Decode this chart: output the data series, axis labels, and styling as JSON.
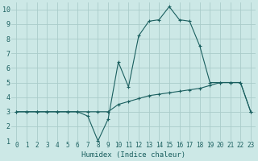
{
  "xlabel": "Humidex (Indice chaleur)",
  "ylabel": "",
  "bg_color": "#cce8e6",
  "grid_color": "#aaccca",
  "line_color": "#1a5f5f",
  "xlim": [
    -0.5,
    23.5
  ],
  "ylim": [
    1,
    10.5
  ],
  "yticks": [
    1,
    2,
    3,
    4,
    5,
    6,
    7,
    8,
    9,
    10
  ],
  "xticks": [
    0,
    1,
    2,
    3,
    4,
    5,
    6,
    7,
    8,
    9,
    10,
    11,
    12,
    13,
    14,
    15,
    16,
    17,
    18,
    19,
    20,
    21,
    22,
    23
  ],
  "curve1_x": [
    0,
    1,
    2,
    3,
    4,
    5,
    6,
    7,
    8,
    9,
    10,
    11,
    12,
    13,
    14,
    15,
    16,
    17,
    18,
    19,
    20,
    21,
    22,
    23
  ],
  "curve1_y": [
    3.0,
    3.0,
    3.0,
    3.0,
    3.0,
    3.0,
    3.0,
    2.7,
    1.0,
    2.5,
    6.4,
    4.7,
    8.2,
    9.2,
    9.3,
    10.2,
    9.3,
    9.2,
    7.5,
    5.0,
    5.0,
    5.0,
    5.0,
    3.0
  ],
  "curve2_x": [
    0,
    1,
    2,
    3,
    4,
    5,
    6,
    7,
    8,
    9,
    10,
    11,
    12,
    13,
    14,
    15,
    16,
    17,
    18,
    19,
    20,
    21,
    22,
    23
  ],
  "curve2_y": [
    3.0,
    3.0,
    3.0,
    3.0,
    3.0,
    3.0,
    3.0,
    3.0,
    3.0,
    3.0,
    3.5,
    3.7,
    3.9,
    4.1,
    4.2,
    4.3,
    4.4,
    4.5,
    4.6,
    4.8,
    5.0,
    5.0,
    5.0,
    3.0
  ],
  "figwidth": 3.2,
  "figheight": 2.0,
  "dpi": 100
}
